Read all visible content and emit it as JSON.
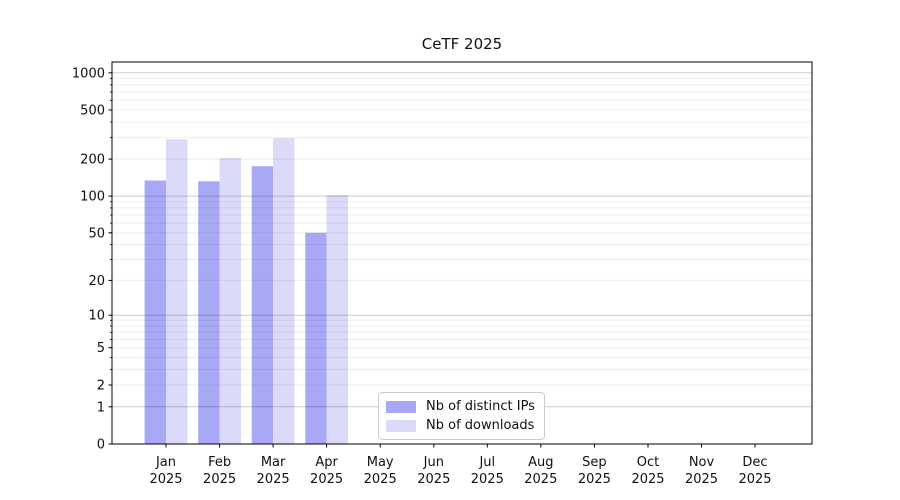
{
  "chart_data": {
    "type": "bar",
    "title": "CeTF 2025",
    "categories": [
      "Jan\n2025",
      "Feb\n2025",
      "Mar\n2025",
      "Apr\n2025",
      "May\n2025",
      "Jun\n2025",
      "Jul\n2025",
      "Aug\n2025",
      "Sep\n2025",
      "Oct\n2025",
      "Nov\n2025",
      "Dec\n2025"
    ],
    "series": [
      {
        "name": "Nb of distinct IPs",
        "color": "#a8a8f6",
        "values": [
          134,
          132,
          175,
          50,
          0,
          0,
          0,
          0,
          0,
          0,
          0,
          0
        ]
      },
      {
        "name": "Nb of downloads",
        "color": "#dbdbf9",
        "values": [
          290,
          204,
          296,
          102,
          0,
          0,
          0,
          0,
          0,
          0,
          0,
          0
        ]
      }
    ],
    "xlabel": "",
    "ylabel": "",
    "yscale": "log1p",
    "yticks": [
      1000,
      500,
      200,
      100,
      50,
      20,
      10,
      5,
      2,
      1,
      0
    ],
    "ylim": [
      0,
      1200
    ],
    "grid": true,
    "grid_minor_color": "rgba(0,0,0,0.07)",
    "grid_major_color": "rgba(0,0,0,0.20)",
    "axis_color": "#000000",
    "legend_position": "bottom-center-inside"
  }
}
